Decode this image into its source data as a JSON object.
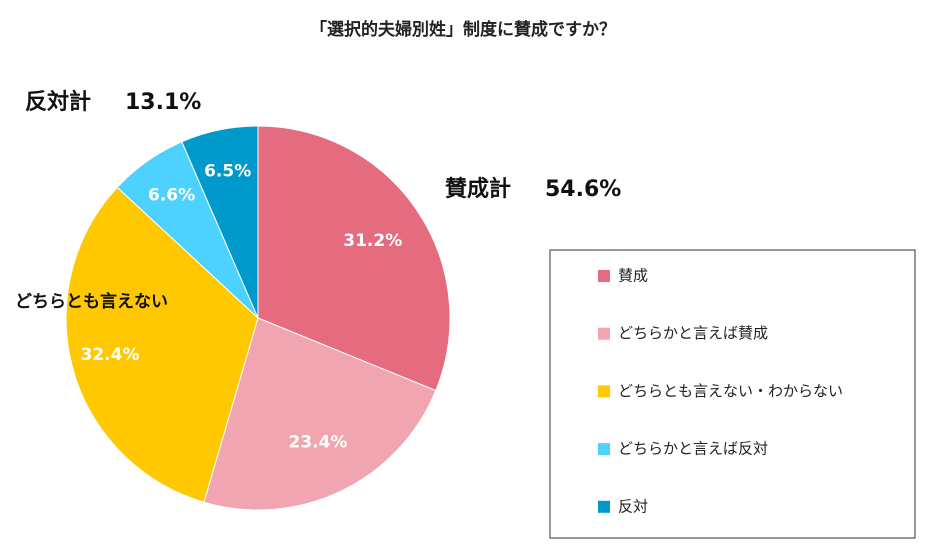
{
  "chart_data": {
    "type": "pie",
    "title": "「選択的夫婦別姓」制度に賛成ですか？",
    "categories": [
      "賛成",
      "どちらかと言えば賛成",
      "どちらとも言えない・わからない",
      "どちらかと言えば反対",
      "反対"
    ],
    "values": [
      31.2,
      23.4,
      32.4,
      6.6,
      6.5
    ],
    "value_labels": [
      "31.2%",
      "23.4%",
      "32.4%",
      "6.6%",
      "6.5%"
    ],
    "colors": [
      "#e56b7f",
      "#f0a5b0",
      "#ffc800",
      "#4dd2ff",
      "#0099cc"
    ],
    "annotations": [
      {
        "label": "反対計",
        "value": "13.1%"
      },
      {
        "label": "賛成計",
        "value": "54.6%"
      },
      {
        "label": "どちらとも言えない"
      }
    ]
  }
}
